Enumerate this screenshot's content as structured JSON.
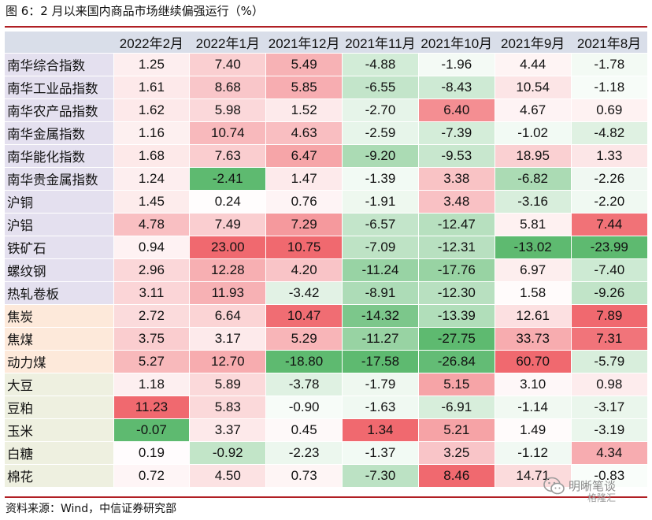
{
  "title": "图 6：2 月以来国内商品市场继续偏强运行（%）",
  "source": "资料来源：Wind，中信证券研究部",
  "watermark": {
    "text": "明晰笔谈",
    "sub": "格隆汇"
  },
  "colors": {
    "positive_max": "#f0696f",
    "negative_max": "#5eba70",
    "neutral": "#ffffff",
    "header_bg": "#d9dee9",
    "group_bg": [
      "#e4e0ef",
      "#fde9da",
      "#eef0e0"
    ],
    "rule": "#b01f24"
  },
  "chart_data": {
    "type": "table",
    "columns": [
      "2022年2月",
      "2022年1月",
      "2021年12月",
      "2021年11月",
      "2021年10月",
      "2021年9月",
      "2021年8月"
    ],
    "color_scale_max": [
      11.23,
      23.0,
      10.75,
      1.34,
      8.46,
      60.7,
      7.89
    ],
    "color_scale_min": [
      -0.07,
      -2.41,
      -18.8,
      -17.58,
      -27.75,
      -13.02,
      -23.99
    ],
    "rows": [
      {
        "name": "南华综合指数",
        "group": 0,
        "values": [
          1.25,
          7.4,
          5.49,
          -4.88,
          -1.96,
          4.44,
          -1.78
        ]
      },
      {
        "name": "南华工业品指数",
        "group": 0,
        "values": [
          1.61,
          8.68,
          5.85,
          -6.55,
          -8.43,
          10.54,
          -1.18
        ]
      },
      {
        "name": "南华农产品指数",
        "group": 0,
        "values": [
          1.62,
          5.98,
          1.52,
          -2.7,
          6.4,
          4.67,
          0.69
        ]
      },
      {
        "name": "南华金属指数",
        "group": 0,
        "values": [
          1.16,
          10.74,
          4.63,
          -2.59,
          -7.39,
          -1.02,
          -4.82
        ]
      },
      {
        "name": "南华能化指数",
        "group": 0,
        "values": [
          1.68,
          7.63,
          6.47,
          -9.2,
          -9.53,
          18.95,
          1.33
        ]
      },
      {
        "name": "南华贵金属指数",
        "group": 0,
        "values": [
          1.24,
          -2.41,
          1.47,
          -1.39,
          3.38,
          -6.82,
          -2.26
        ]
      },
      {
        "name": "沪铜",
        "group": 0,
        "values": [
          1.45,
          0.24,
          0.76,
          -1.91,
          3.48,
          -3.16,
          -2.2
        ]
      },
      {
        "name": "沪铝",
        "group": 0,
        "values": [
          4.78,
          7.49,
          7.29,
          -6.57,
          -12.47,
          5.81,
          7.44
        ]
      },
      {
        "name": "铁矿石",
        "group": 0,
        "values": [
          0.94,
          23.0,
          10.75,
          -7.09,
          -12.31,
          -13.02,
          -23.99
        ]
      },
      {
        "name": "螺纹钢",
        "group": 0,
        "values": [
          2.96,
          12.28,
          4.2,
          -11.24,
          -17.76,
          6.97,
          -7.4
        ]
      },
      {
        "name": "热轧卷板",
        "group": 0,
        "values": [
          3.11,
          11.93,
          -3.42,
          -8.91,
          -12.3,
          1.58,
          -9.26
        ]
      },
      {
        "name": "焦炭",
        "group": 1,
        "values": [
          2.72,
          6.64,
          10.47,
          -14.32,
          -13.39,
          12.61,
          7.89
        ]
      },
      {
        "name": "焦煤",
        "group": 1,
        "values": [
          3.75,
          3.17,
          5.29,
          -11.27,
          -27.75,
          33.73,
          7.31
        ]
      },
      {
        "name": "动力煤",
        "group": 1,
        "values": [
          5.27,
          12.7,
          -18.8,
          -17.58,
          -26.84,
          60.7,
          -5.79
        ]
      },
      {
        "name": "大豆",
        "group": 2,
        "values": [
          1.18,
          5.89,
          -3.78,
          -1.79,
          5.15,
          3.1,
          0.98
        ]
      },
      {
        "name": "豆粕",
        "group": 2,
        "values": [
          11.23,
          5.83,
          -0.9,
          -1.63,
          -6.91,
          -1.14,
          -3.17
        ]
      },
      {
        "name": "玉米",
        "group": 2,
        "values": [
          -0.07,
          3.37,
          0.45,
          1.34,
          5.21,
          1.49,
          -3.19
        ]
      },
      {
        "name": "白糖",
        "group": 2,
        "values": [
          0.19,
          -0.92,
          -2.23,
          -1.37,
          3.25,
          -1.12,
          4.34
        ]
      },
      {
        "name": "棉花",
        "group": 2,
        "values": [
          0.72,
          4.5,
          0.73,
          -7.3,
          8.46,
          14.71,
          -0.83
        ]
      }
    ]
  }
}
